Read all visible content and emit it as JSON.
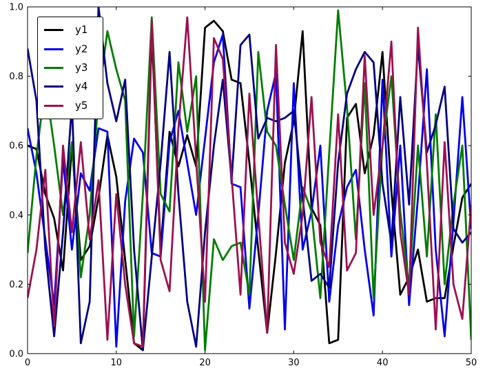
{
  "figure": {
    "background": "#ffffff",
    "frame_color": "#000000"
  },
  "legend": {
    "position": "upper left",
    "border_color": "#000000",
    "background": "#ffffff"
  },
  "chart_data": {
    "type": "line",
    "title": "",
    "xlabel": "",
    "ylabel": "",
    "xlim": [
      0,
      50
    ],
    "ylim": [
      0.0,
      1.0
    ],
    "x_tick_labels": [
      "0",
      "10",
      "20",
      "30",
      "40",
      "50"
    ],
    "x_ticks": [
      0,
      10,
      20,
      30,
      40,
      50
    ],
    "y_tick_labels": [
      "0.0",
      "0.2",
      "0.4",
      "0.6",
      "0.8",
      "1.0"
    ],
    "y_ticks": [
      0.0,
      0.2,
      0.4,
      0.6,
      0.8,
      1.0
    ],
    "grid": false,
    "legend_position": "upper left",
    "x": [
      0,
      1,
      2,
      3,
      4,
      5,
      6,
      7,
      8,
      9,
      10,
      11,
      12,
      13,
      14,
      15,
      16,
      17,
      18,
      19,
      20,
      21,
      22,
      23,
      24,
      25,
      26,
      27,
      28,
      29,
      30,
      31,
      32,
      33,
      34,
      35,
      36,
      37,
      38,
      39,
      40,
      41,
      42,
      43,
      44,
      45,
      46,
      47,
      48,
      49,
      50
    ],
    "series": [
      {
        "name": "y1",
        "color": "#000000",
        "values": [
          0.6,
          0.59,
          0.46,
          0.39,
          0.24,
          0.6,
          0.27,
          0.31,
          0.45,
          0.63,
          0.51,
          0.27,
          0.03,
          0.01,
          0.93,
          0.3,
          0.64,
          0.54,
          0.63,
          0.54,
          0.94,
          0.96,
          0.93,
          0.79,
          0.78,
          0.55,
          0.3,
          0.06,
          0.29,
          0.55,
          0.67,
          0.93,
          0.42,
          0.37,
          0.03,
          0.04,
          0.68,
          0.72,
          0.52,
          0.63,
          0.87,
          0.47,
          0.17,
          0.22,
          0.3,
          0.15,
          0.16,
          0.16,
          0.31,
          0.45,
          0.49
        ]
      },
      {
        "name": "y2",
        "color": "#0000ee",
        "values": [
          0.65,
          0.52,
          0.33,
          0.14,
          0.56,
          0.3,
          0.52,
          0.47,
          0.65,
          0.64,
          0.02,
          0.44,
          0.62,
          0.58,
          0.29,
          0.28,
          0.61,
          0.7,
          0.55,
          0.4,
          0.62,
          0.84,
          0.92,
          0.49,
          0.48,
          0.13,
          0.4,
          0.7,
          0.81,
          0.07,
          0.78,
          0.3,
          0.41,
          0.6,
          0.15,
          0.37,
          0.48,
          0.53,
          0.3,
          0.11,
          0.79,
          0.28,
          0.6,
          0.14,
          0.45,
          0.82,
          0.3,
          0.05,
          0.38,
          0.74,
          0.36
        ]
      },
      {
        "name": "y3",
        "color": "#007d00",
        "values": [
          0.29,
          0.57,
          0.78,
          0.6,
          0.4,
          0.61,
          0.22,
          0.4,
          0.74,
          0.93,
          0.82,
          0.73,
          0.05,
          0.46,
          0.97,
          0.46,
          0.41,
          0.84,
          0.64,
          0.8,
          0.01,
          0.33,
          0.27,
          0.31,
          0.32,
          0.17,
          0.87,
          0.64,
          0.6,
          0.43,
          0.27,
          0.48,
          0.41,
          0.16,
          0.58,
          0.99,
          0.71,
          0.33,
          0.78,
          0.16,
          0.6,
          0.8,
          0.41,
          0.19,
          0.6,
          0.28,
          0.69,
          0.2,
          0.43,
          0.6,
          0.04
        ]
      },
      {
        "name": "y4",
        "color": "#000080",
        "values": [
          0.88,
          0.73,
          0.3,
          0.05,
          0.35,
          0.72,
          0.03,
          0.15,
          1.0,
          0.78,
          0.67,
          0.79,
          0.3,
          0.01,
          0.28,
          0.55,
          0.87,
          0.46,
          0.15,
          0.02,
          0.35,
          0.6,
          0.79,
          0.5,
          0.89,
          0.92,
          0.62,
          0.68,
          0.67,
          0.68,
          0.7,
          0.45,
          0.21,
          0.23,
          0.19,
          0.55,
          0.75,
          0.82,
          0.87,
          0.84,
          0.49,
          0.32,
          0.74,
          0.43,
          0.89,
          0.58,
          0.66,
          0.77,
          0.36,
          0.32,
          0.35
        ]
      },
      {
        "name": "y5",
        "color": "#9c1050",
        "values": [
          0.16,
          0.3,
          0.53,
          0.08,
          0.6,
          0.35,
          0.61,
          0.33,
          0.5,
          0.04,
          0.46,
          0.2,
          0.03,
          0.02,
          0.96,
          0.27,
          0.18,
          0.65,
          0.97,
          0.56,
          0.15,
          0.91,
          0.85,
          0.51,
          0.17,
          0.75,
          0.4,
          0.06,
          0.89,
          0.32,
          0.23,
          0.4,
          0.74,
          0.32,
          0.25,
          0.69,
          0.24,
          0.29,
          0.86,
          0.4,
          0.6,
          0.9,
          0.35,
          0.17,
          0.94,
          0.55,
          0.07,
          0.61,
          0.2,
          0.1,
          0.43
        ]
      }
    ]
  }
}
